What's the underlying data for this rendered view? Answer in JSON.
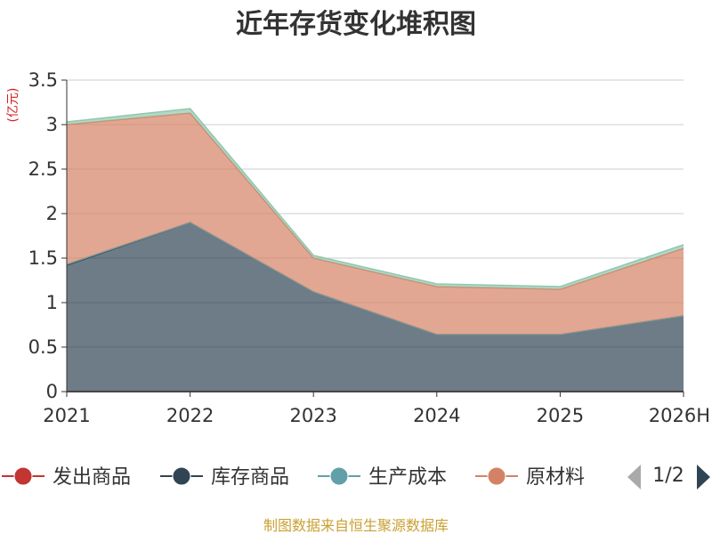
{
  "chart_data": {
    "type": "area",
    "title": "近年存货变化堆积图",
    "unit_label": "(亿元)",
    "categories": [
      "2021",
      "2022",
      "2023",
      "2024",
      "2025",
      "2026H"
    ],
    "ylim": [
      0,
      3.5
    ],
    "yticks": [
      "0",
      "0.5",
      "1",
      "1.5",
      "2",
      "2.5",
      "3",
      "3.5"
    ],
    "grid": true,
    "stacked": true,
    "series": [
      {
        "name": "发出商品",
        "values": [
          0,
          0,
          0,
          0,
          0,
          0
        ],
        "color": "#c23531"
      },
      {
        "name": "库存商品",
        "values": [
          1.42,
          1.9,
          1.12,
          0.64,
          0.64,
          0.85
        ],
        "color": "#2f4554"
      },
      {
        "name": "生产成本",
        "values": [
          0.01,
          0.0,
          0.0,
          0.0,
          0.0,
          0.0
        ],
        "color": "#61a0a8"
      },
      {
        "name": "原材料",
        "values": [
          1.57,
          1.23,
          0.38,
          0.54,
          0.51,
          0.76
        ],
        "color": "#d48265"
      },
      {
        "name": "",
        "values": [
          0.03,
          0.05,
          0.03,
          0.03,
          0.03,
          0.04
        ],
        "color": "#91c7ae"
      }
    ],
    "legend_position": "bottom",
    "legend_page": "1/2",
    "source": "制图数据来自恒生聚源数据库"
  }
}
